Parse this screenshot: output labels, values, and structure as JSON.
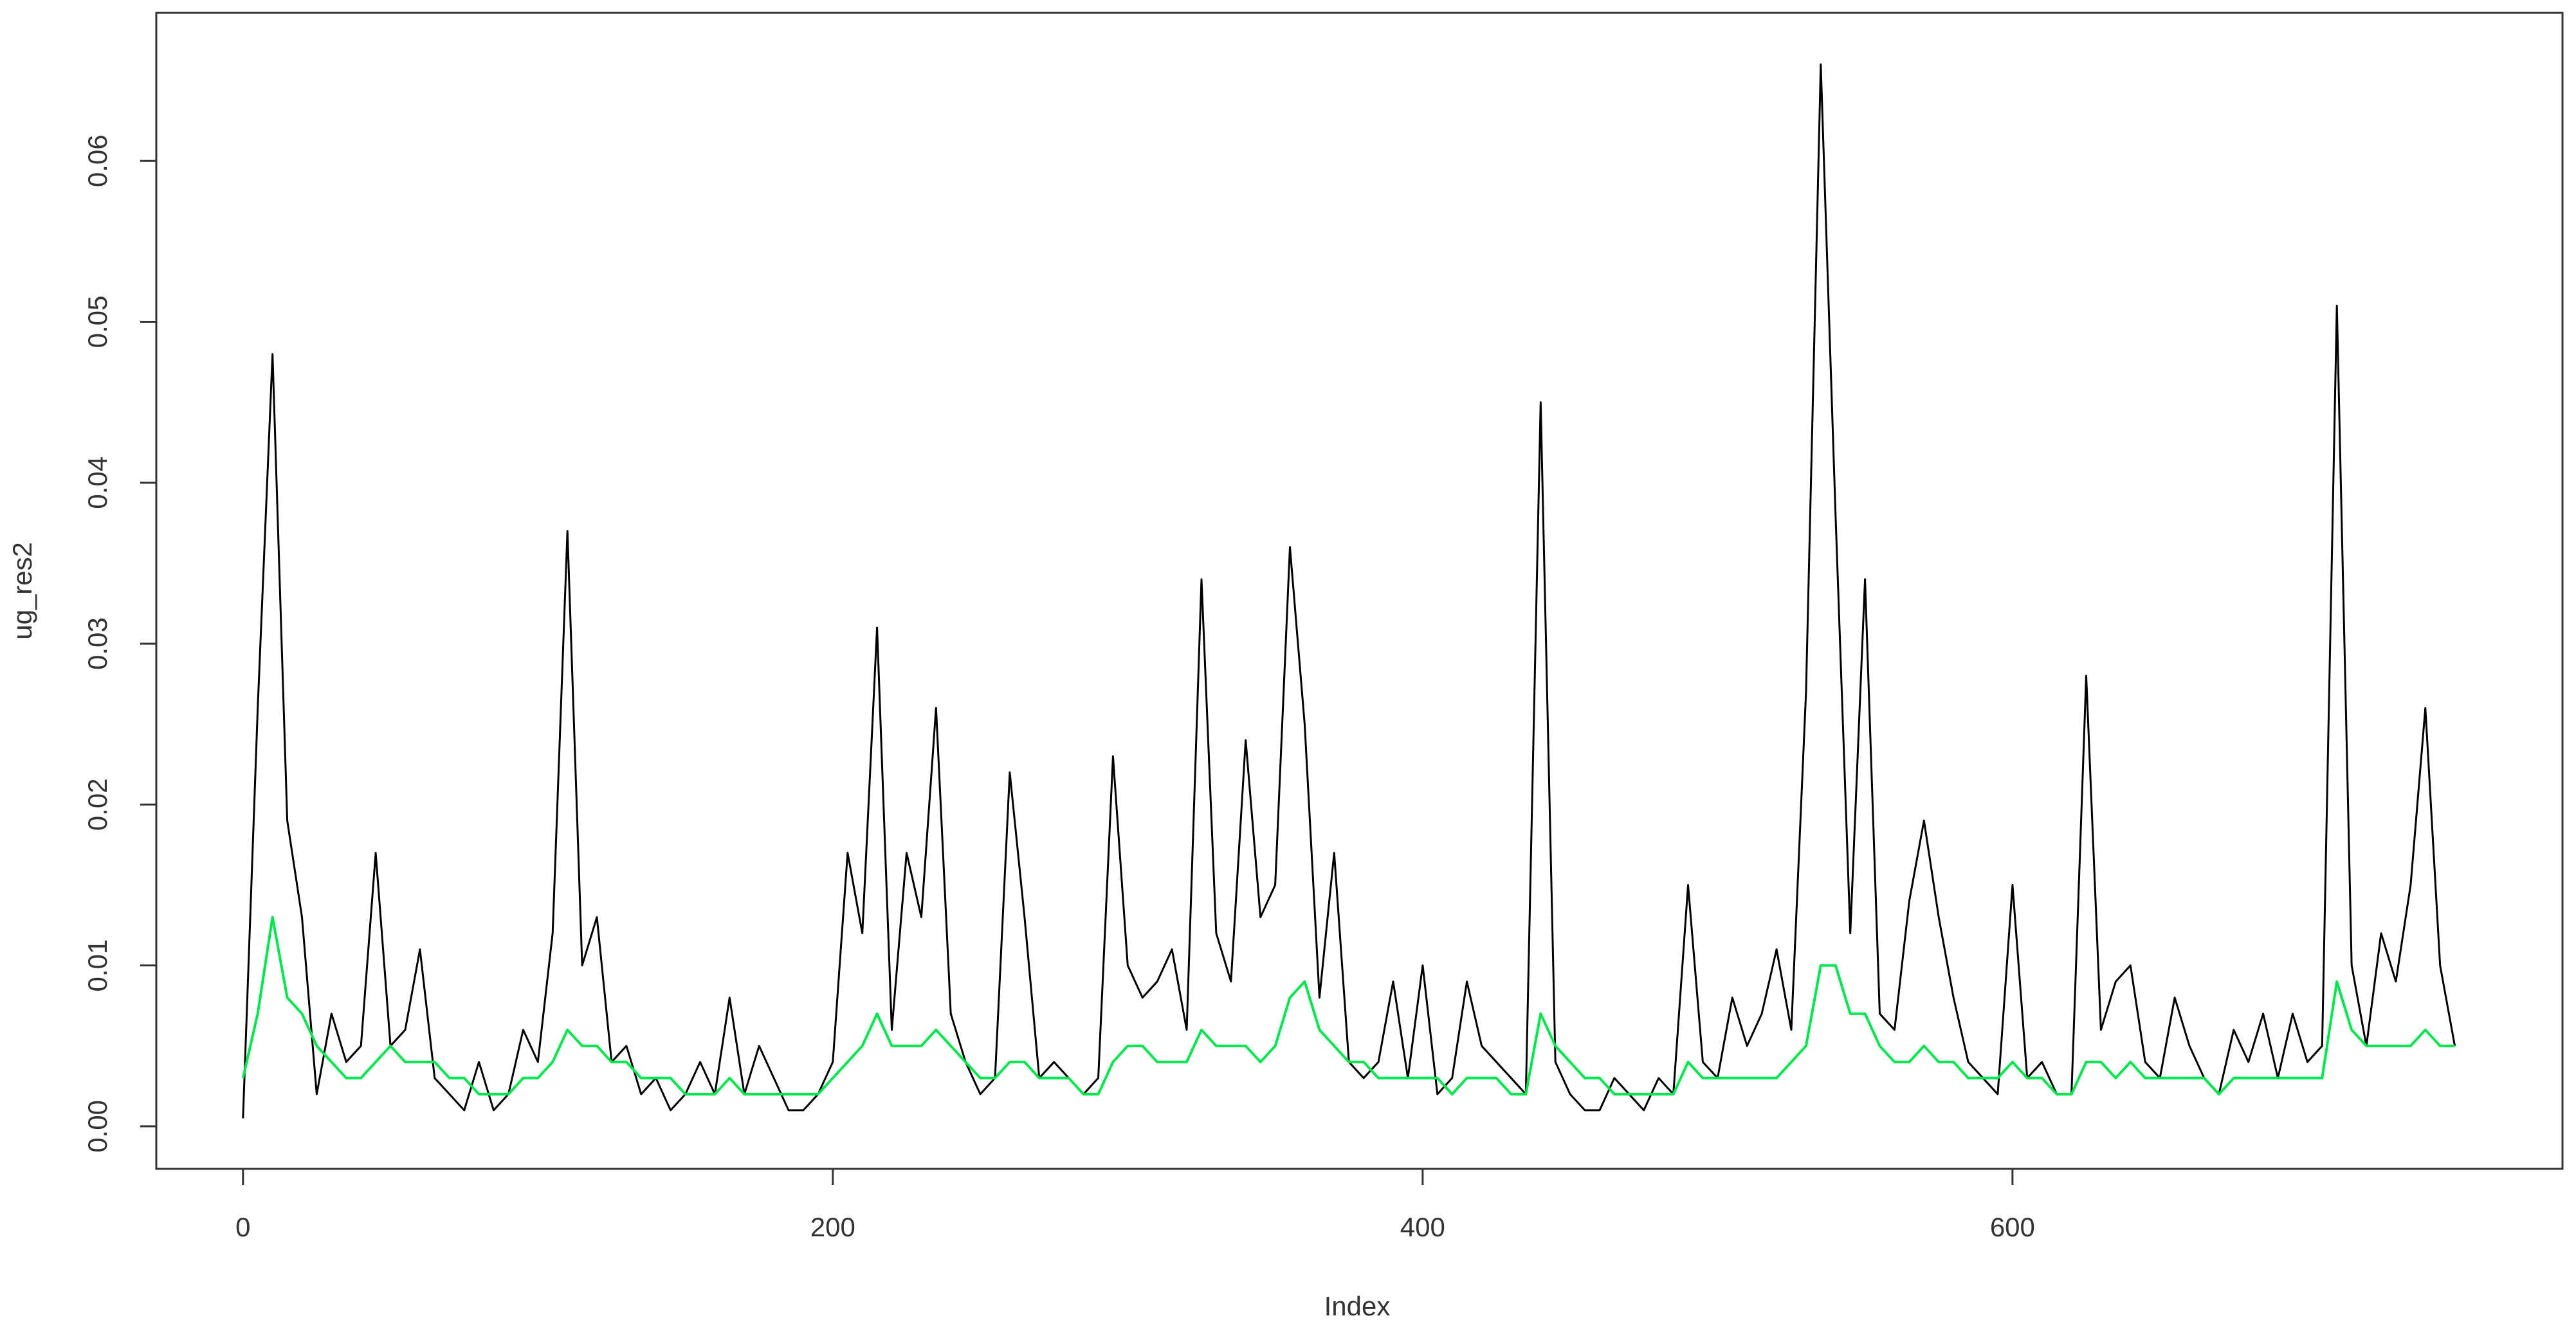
{
  "chart_data": {
    "type": "line",
    "xlabel": "Index",
    "ylabel": "ug_res2",
    "x": [
      0,
      5,
      10,
      15,
      20,
      25,
      30,
      35,
      40,
      45,
      50,
      55,
      60,
      65,
      70,
      75,
      80,
      85,
      90,
      95,
      100,
      105,
      110,
      115,
      120,
      125,
      130,
      135,
      140,
      145,
      150,
      155,
      160,
      165,
      170,
      175,
      180,
      185,
      190,
      195,
      200,
      205,
      210,
      215,
      220,
      225,
      230,
      235,
      240,
      245,
      250,
      255,
      260,
      265,
      270,
      275,
      280,
      285,
      290,
      295,
      300,
      305,
      310,
      315,
      320,
      325,
      330,
      335,
      340,
      345,
      350,
      355,
      360,
      365,
      370,
      375,
      380,
      385,
      390,
      395,
      400,
      405,
      410,
      415,
      420,
      425,
      430,
      435,
      440,
      445,
      450,
      455,
      460,
      465,
      470,
      475,
      480,
      485,
      490,
      495,
      500,
      505,
      510,
      515,
      520,
      525,
      530,
      535,
      540,
      545,
      550,
      555,
      560,
      565,
      570,
      575,
      580,
      585,
      590,
      595,
      600,
      605,
      610,
      615,
      620,
      625,
      630,
      635,
      640,
      645,
      650,
      655,
      660,
      665,
      670,
      675,
      680,
      685,
      690,
      695,
      700,
      705,
      710,
      715,
      720,
      725,
      730,
      735,
      740,
      745,
      750
    ],
    "series": [
      {
        "color": "#000000",
        "values": [
          0.0005,
          0.026,
          0.048,
          0.019,
          0.013,
          0.002,
          0.007,
          0.004,
          0.005,
          0.017,
          0.005,
          0.006,
          0.011,
          0.003,
          0.002,
          0.001,
          0.004,
          0.001,
          0.002,
          0.006,
          0.004,
          0.012,
          0.037,
          0.01,
          0.013,
          0.004,
          0.005,
          0.002,
          0.003,
          0.001,
          0.002,
          0.004,
          0.002,
          0.008,
          0.002,
          0.005,
          0.003,
          0.001,
          0.001,
          0.002,
          0.004,
          0.017,
          0.012,
          0.031,
          0.006,
          0.017,
          0.013,
          0.026,
          0.007,
          0.004,
          0.002,
          0.003,
          0.022,
          0.013,
          0.003,
          0.004,
          0.003,
          0.002,
          0.003,
          0.023,
          0.01,
          0.008,
          0.009,
          0.011,
          0.006,
          0.034,
          0.012,
          0.009,
          0.024,
          0.013,
          0.015,
          0.036,
          0.025,
          0.008,
          0.017,
          0.004,
          0.003,
          0.004,
          0.009,
          0.003,
          0.01,
          0.002,
          0.003,
          0.009,
          0.005,
          0.004,
          0.003,
          0.002,
          0.045,
          0.004,
          0.002,
          0.001,
          0.001,
          0.003,
          0.002,
          0.001,
          0.003,
          0.002,
          0.015,
          0.004,
          0.003,
          0.008,
          0.005,
          0.007,
          0.011,
          0.006,
          0.027,
          0.066,
          0.038,
          0.012,
          0.034,
          0.007,
          0.006,
          0.014,
          0.019,
          0.013,
          0.008,
          0.004,
          0.003,
          0.002,
          0.015,
          0.003,
          0.004,
          0.002,
          0.002,
          0.028,
          0.006,
          0.009,
          0.01,
          0.004,
          0.003,
          0.008,
          0.005,
          0.003,
          0.002,
          0.006,
          0.004,
          0.007,
          0.003,
          0.007,
          0.004,
          0.005,
          0.051,
          0.01,
          0.005,
          0.012,
          0.009,
          0.015,
          0.026,
          0.01,
          0.005
        ]
      },
      {
        "color": "#00e64d",
        "values": [
          0.003,
          0.007,
          0.013,
          0.008,
          0.007,
          0.005,
          0.004,
          0.003,
          0.003,
          0.004,
          0.005,
          0.004,
          0.004,
          0.004,
          0.003,
          0.003,
          0.002,
          0.002,
          0.002,
          0.003,
          0.003,
          0.004,
          0.006,
          0.005,
          0.005,
          0.004,
          0.004,
          0.003,
          0.003,
          0.003,
          0.002,
          0.002,
          0.002,
          0.003,
          0.002,
          0.002,
          0.002,
          0.002,
          0.002,
          0.002,
          0.003,
          0.004,
          0.005,
          0.007,
          0.005,
          0.005,
          0.005,
          0.006,
          0.005,
          0.004,
          0.003,
          0.003,
          0.004,
          0.004,
          0.003,
          0.003,
          0.003,
          0.002,
          0.002,
          0.004,
          0.005,
          0.005,
          0.004,
          0.004,
          0.004,
          0.006,
          0.005,
          0.005,
          0.005,
          0.004,
          0.005,
          0.008,
          0.009,
          0.006,
          0.005,
          0.004,
          0.004,
          0.003,
          0.003,
          0.003,
          0.003,
          0.003,
          0.002,
          0.003,
          0.003,
          0.003,
          0.002,
          0.002,
          0.007,
          0.005,
          0.004,
          0.003,
          0.003,
          0.002,
          0.002,
          0.002,
          0.002,
          0.002,
          0.004,
          0.003,
          0.003,
          0.003,
          0.003,
          0.003,
          0.003,
          0.004,
          0.005,
          0.01,
          0.01,
          0.007,
          0.007,
          0.005,
          0.004,
          0.004,
          0.005,
          0.004,
          0.004,
          0.003,
          0.003,
          0.003,
          0.004,
          0.003,
          0.003,
          0.002,
          0.002,
          0.004,
          0.004,
          0.003,
          0.004,
          0.003,
          0.003,
          0.003,
          0.003,
          0.003,
          0.002,
          0.003,
          0.003,
          0.003,
          0.003,
          0.003,
          0.003,
          0.003,
          0.009,
          0.006,
          0.005,
          0.005,
          0.005,
          0.005,
          0.006,
          0.005,
          0.005
        ]
      }
    ],
    "xlim": [
      -29.4,
      786.5
    ],
    "xticks": [
      0,
      200,
      400,
      600
    ],
    "ylim": [
      -0.00264,
      0.0692
    ],
    "yticks": [
      {
        "value": 0,
        "label": "0.00"
      },
      0.01,
      0.02,
      0.03,
      0.04,
      0.05,
      0.06
    ]
  }
}
